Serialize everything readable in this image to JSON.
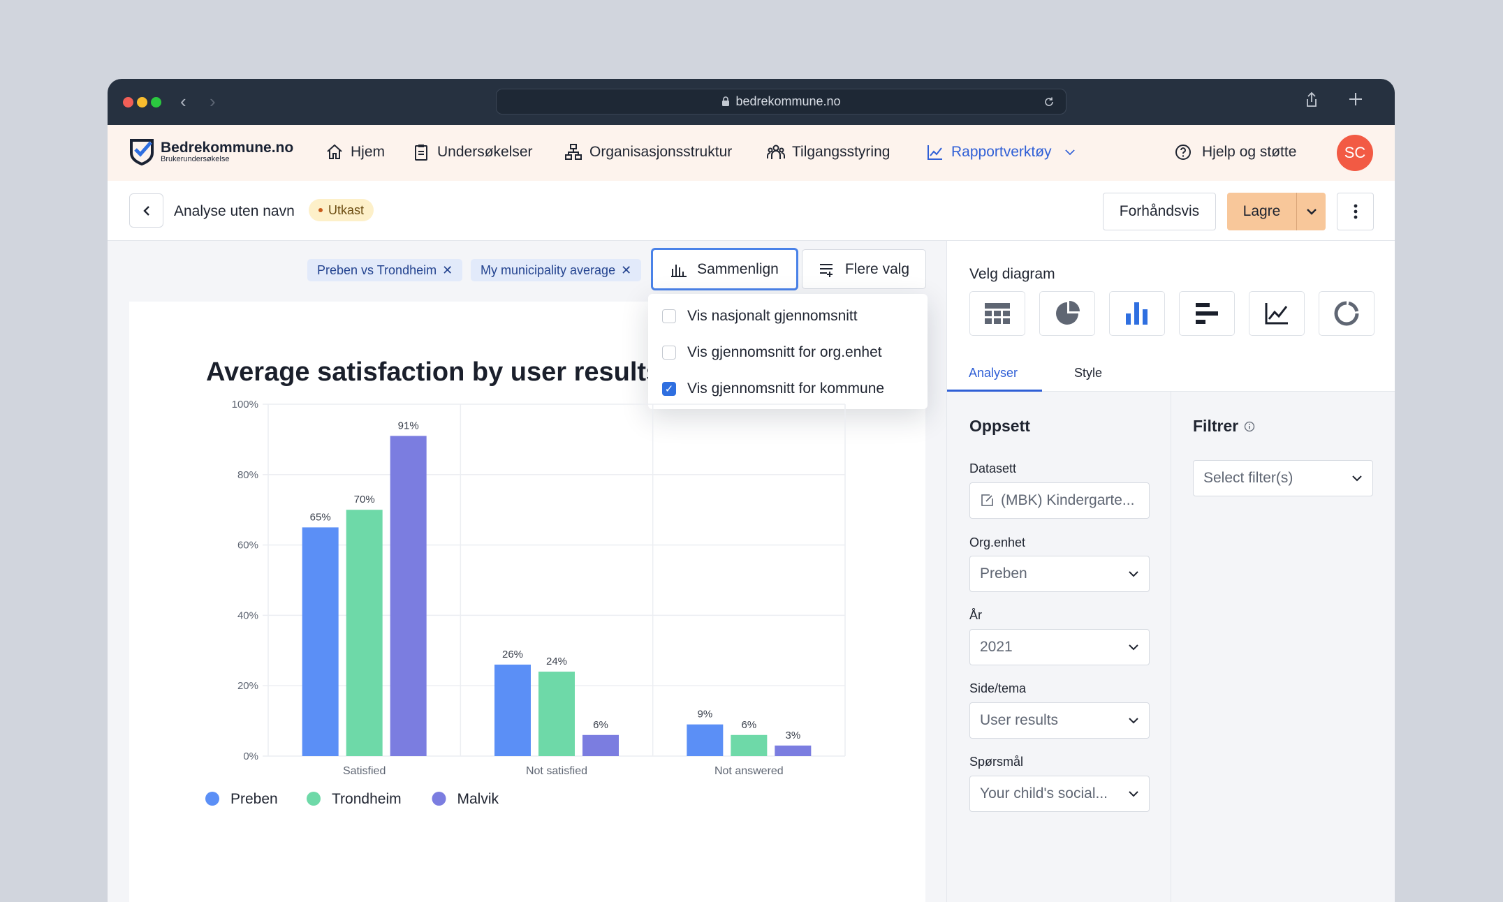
{
  "browser": {
    "url": "bedrekommune.no"
  },
  "brand": {
    "name": "Bedrekommune.no",
    "tagline": "Brukerundersøkelse"
  },
  "nav": {
    "items": [
      {
        "label": "Hjem",
        "icon": "home-icon"
      },
      {
        "label": "Undersøkelser",
        "icon": "clipboard-icon"
      },
      {
        "label": "Organisasjonsstruktur",
        "icon": "org-chart-icon"
      },
      {
        "label": "Tilgangsstyring",
        "icon": "users-icon"
      },
      {
        "label": "Rapportverktøy",
        "icon": "line-chart-icon",
        "active": true
      }
    ],
    "help": "Hjelp og støtte",
    "avatar": "SC"
  },
  "toolbar": {
    "title": "Analyse uten navn",
    "status": "Utkast",
    "preview": "Forhåndsvis",
    "save": "Lagre"
  },
  "filters": {
    "chips": [
      "Preben vs Trondheim",
      "My municipality average"
    ],
    "compare_label": "Sammenlign",
    "more_label": "Flere valg"
  },
  "compare_menu": [
    {
      "label": "Vis nasjonalt gjennomsnitt",
      "checked": false
    },
    {
      "label": "Vis gjennomsnitt for org.enhet",
      "checked": false
    },
    {
      "label": "Vis gjennomsnitt for kommune",
      "checked": true
    }
  ],
  "chart_data": {
    "type": "bar",
    "title": "Average satisfaction by user results",
    "categories": [
      "Satisfied",
      "Not satisfied",
      "Not answered"
    ],
    "series": [
      {
        "name": "Preben",
        "values": [
          65,
          26,
          9
        ],
        "color": "#5b8ff6"
      },
      {
        "name": "Trondheim",
        "values": [
          70,
          24,
          6
        ],
        "color": "#6ed9a8"
      },
      {
        "name": "Malvik",
        "values": [
          91,
          6,
          3
        ],
        "color": "#7b7de0"
      }
    ],
    "ylim": [
      0,
      100
    ],
    "yticks": [
      "0%",
      "20%",
      "40%",
      "60%",
      "80%",
      "100%"
    ],
    "value_suffix": "%",
    "legend": "bottom-left",
    "grid": true
  },
  "right_panel": {
    "chart_picker_label": "Velg diagram",
    "chart_types": [
      "table-icon",
      "pie-chart-icon",
      "bar-chart-icon",
      "horizontal-bar-icon",
      "line-chart-icon",
      "donut-chart-icon"
    ],
    "tabs": [
      "Analyser",
      "Style"
    ],
    "setup_heading": "Oppsett",
    "filter_heading": "Filtrer",
    "filter_placeholder": "Select filter(s)",
    "fields": [
      {
        "label": "Datasett",
        "value": "(MBK) Kindergarte..."
      },
      {
        "label": "Org.enhet",
        "value": "Preben"
      },
      {
        "label": "År",
        "value": "2021"
      },
      {
        "label": "Side/tema",
        "value": "User results"
      },
      {
        "label": "Spørsmål",
        "value": "Your child's social..."
      }
    ]
  }
}
